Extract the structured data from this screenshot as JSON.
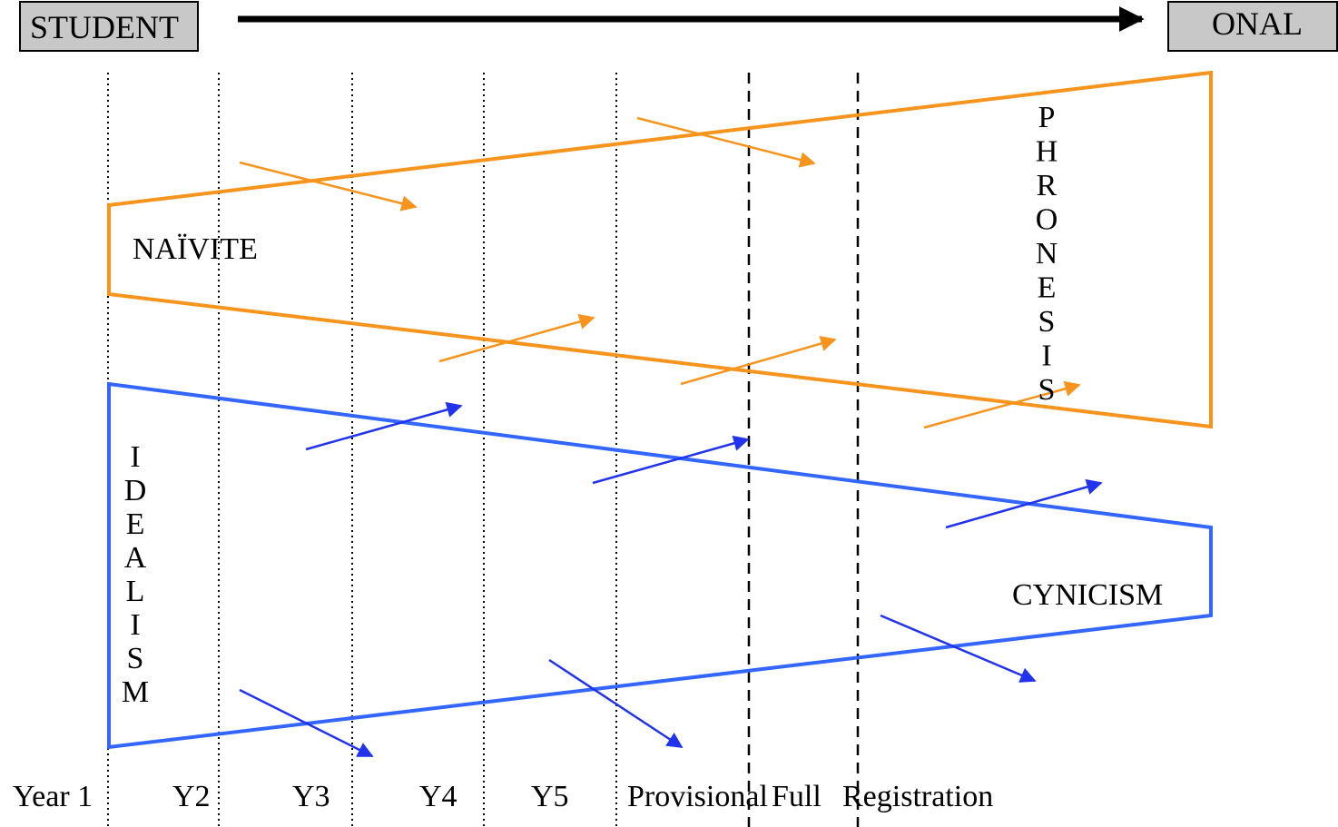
{
  "header": {
    "left_box_label": "STUDENT",
    "right_box_label": "ONAL"
  },
  "regions": {
    "naivete": "NAÏVITE",
    "phronesis": "PHRONESIS",
    "idealism": "IDEALISM",
    "cynicism": "CYNICISM"
  },
  "timeline": {
    "labels": [
      "Year 1",
      "Y2",
      "Y3",
      "Y4",
      "Y5",
      "Provisional",
      "Full",
      "Registration"
    ]
  },
  "colors": {
    "orange": "#f7941d",
    "blue": "#3366ff",
    "box_fill": "#c8c8c8",
    "black": "#000000"
  }
}
